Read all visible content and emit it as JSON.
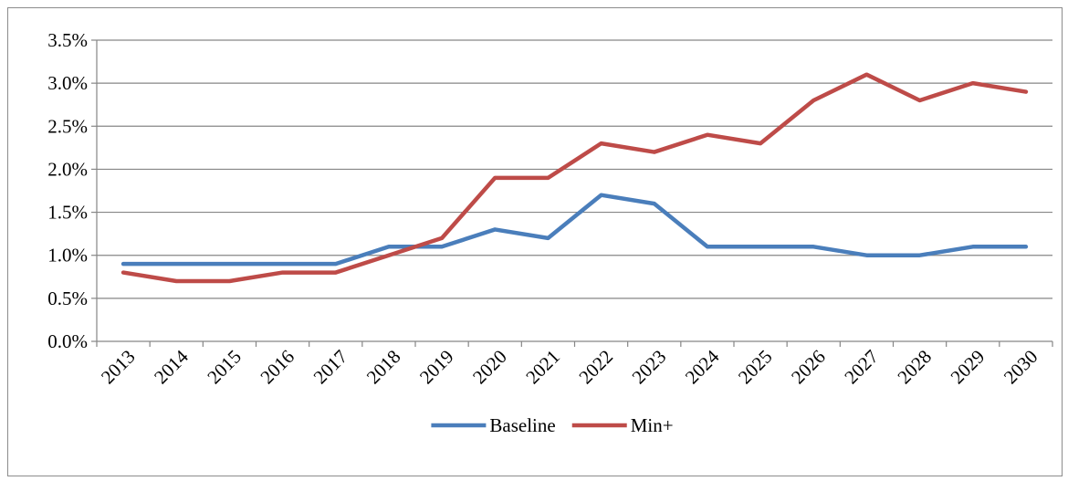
{
  "chart_data": {
    "type": "line",
    "title": "",
    "xlabel": "",
    "ylabel": "",
    "x": [
      "2013",
      "2014",
      "2015",
      "2016",
      "2017",
      "2018",
      "2019",
      "2020",
      "2021",
      "2022",
      "2023",
      "2024",
      "2025",
      "2026",
      "2027",
      "2028",
      "2029",
      "2030"
    ],
    "series": [
      {
        "name": "Baseline",
        "color": "#4a7ebb",
        "values": [
          0.9,
          0.9,
          0.9,
          0.9,
          0.9,
          1.1,
          1.1,
          1.3,
          1.2,
          1.7,
          1.6,
          1.1,
          1.1,
          1.1,
          1.0,
          1.0,
          1.1,
          1.1
        ]
      },
      {
        "name": "Min+",
        "color": "#be4b48",
        "values": [
          0.8,
          0.7,
          0.7,
          0.8,
          0.8,
          1.0,
          1.2,
          1.9,
          1.9,
          2.3,
          2.2,
          2.4,
          2.3,
          2.8,
          3.1,
          2.8,
          3.0,
          2.9
        ]
      }
    ],
    "ylim": [
      0,
      3.5
    ],
    "yticks": [
      "0.0%",
      "0.5%",
      "1.0%",
      "1.5%",
      "2.0%",
      "2.5%",
      "3.0%",
      "3.5%"
    ],
    "grid": true,
    "legend_position": "bottom"
  }
}
